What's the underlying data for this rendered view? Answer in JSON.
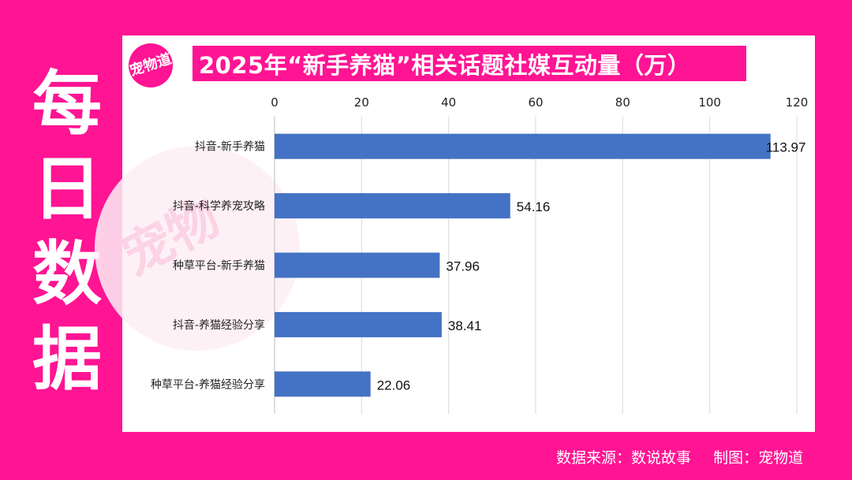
{
  "side_title": [
    "每",
    "日",
    "数",
    "据"
  ],
  "logo_text": "宠物道",
  "footer": {
    "source": "数据来源：数说故事",
    "maker": "制图：宠物道"
  },
  "colors": {
    "background": "#ff1493",
    "bar": "#4472c4",
    "grid": "#d9d9d9"
  },
  "chart_data": {
    "type": "bar",
    "orientation": "horizontal",
    "title": "2025年“新手养猫”相关话题社媒互动量（万）",
    "categories": [
      "抖音-新手养猫",
      "抖音-科学养宠攻略",
      "种草平台-新手养猫",
      "抖音-养猫经验分享",
      "种草平台-养猫经验分享"
    ],
    "values": [
      113.97,
      54.16,
      37.96,
      38.41,
      22.06
    ],
    "value_labels": [
      "113.97",
      "54.16",
      "37.96",
      "38.41",
      "22.06"
    ],
    "xlim": [
      0,
      120
    ],
    "xticks": [
      "0",
      "20",
      "40",
      "60",
      "80",
      "100",
      "120"
    ],
    "x_axis_position": "top",
    "grid": true,
    "legend": "none"
  }
}
